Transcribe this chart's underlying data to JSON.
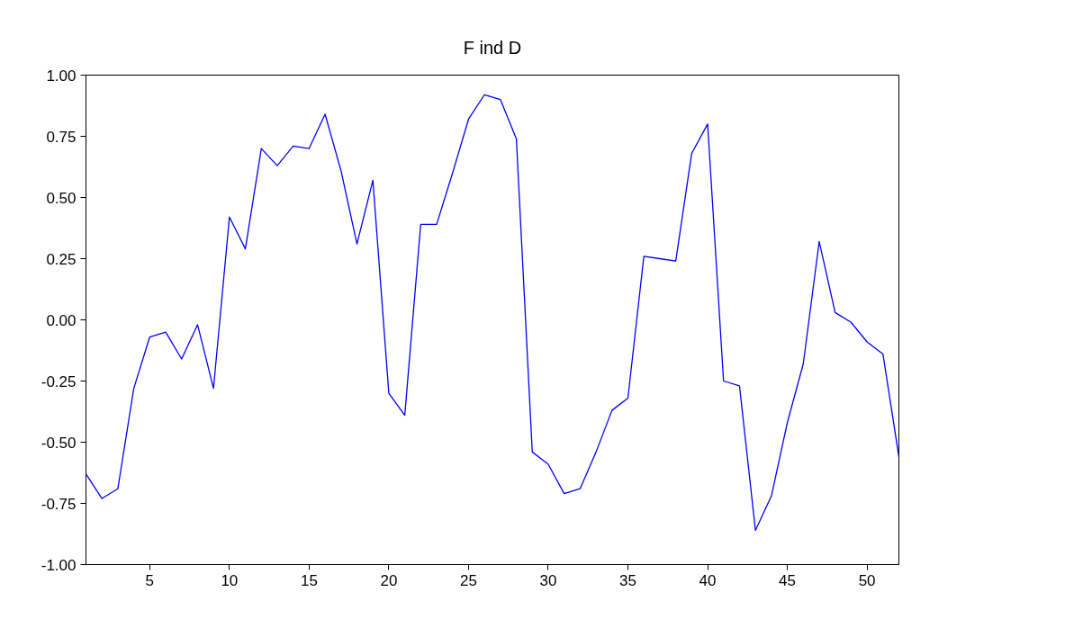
{
  "chart_data": {
    "type": "line",
    "title": "F ind D",
    "x": [
      1,
      2,
      3,
      4,
      5,
      6,
      7,
      8,
      9,
      10,
      11,
      12,
      13,
      14,
      15,
      16,
      17,
      18,
      19,
      20,
      21,
      22,
      23,
      24,
      25,
      26,
      27,
      28,
      29,
      30,
      31,
      32,
      33,
      34,
      35,
      36,
      37,
      38,
      39,
      40,
      41,
      42,
      43,
      44,
      45,
      46,
      47,
      48,
      49,
      50,
      51,
      52
    ],
    "series": [
      {
        "color": "#0000ff",
        "values": [
          -0.63,
          -0.73,
          -0.69,
          -0.28,
          -0.07,
          -0.05,
          -0.16,
          -0.02,
          -0.28,
          0.42,
          0.29,
          0.7,
          0.63,
          0.71,
          0.7,
          0.84,
          0.61,
          0.31,
          0.57,
          -0.3,
          -0.39,
          0.39,
          0.39,
          0.6,
          0.82,
          0.92,
          0.9,
          0.74,
          -0.54,
          -0.59,
          -0.71,
          -0.69,
          -0.54,
          -0.37,
          -0.32,
          0.26,
          0.25,
          0.24,
          0.68,
          0.8,
          -0.25,
          -0.27,
          -0.86,
          -0.72,
          -0.42,
          -0.18,
          0.32,
          0.03,
          -0.01,
          -0.09,
          -0.14,
          -0.56
        ]
      }
    ],
    "xlim": [
      1,
      52
    ],
    "xticks": [
      5,
      10,
      15,
      20,
      25,
      30,
      35,
      40,
      45,
      50
    ],
    "ylim": [
      -1,
      1
    ],
    "yticks": [
      {
        "value": -1,
        "label": "-1.00"
      },
      {
        "value": -0.75,
        "label": "-0.75"
      },
      {
        "value": -0.5,
        "label": "-0.50"
      },
      {
        "value": -0.25,
        "label": "-0.25"
      },
      {
        "value": 0,
        "label": "0.00"
      },
      {
        "value": 0.25,
        "label": "0.25"
      },
      {
        "value": 0.5,
        "label": "0.50"
      },
      {
        "value": 0.75,
        "label": "0.75"
      },
      {
        "value": 1,
        "label": "1.00"
      }
    ],
    "grid": false
  }
}
